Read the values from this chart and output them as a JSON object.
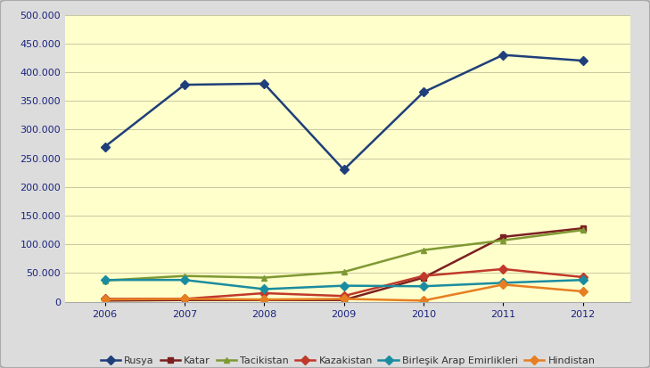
{
  "years": [
    2006,
    2007,
    2008,
    2009,
    2010,
    2011,
    2012
  ],
  "series": {
    "Rusya": {
      "values": [
        270000,
        378000,
        380000,
        230000,
        365000,
        430000,
        420000
      ],
      "color": "#1F3F7A",
      "marker": "D"
    },
    "Katar": {
      "values": [
        2000,
        3000,
        3000,
        3000,
        42000,
        113000,
        128000
      ],
      "color": "#7B2020",
      "marker": "s"
    },
    "Tacikistan": {
      "values": [
        37000,
        45000,
        42000,
        52000,
        90000,
        107000,
        125000
      ],
      "color": "#7F9933",
      "marker": "^"
    },
    "Kazakistan": {
      "values": [
        5000,
        5000,
        15000,
        10000,
        45000,
        57000,
        43000
      ],
      "color": "#C0392B",
      "marker": "D"
    },
    "Birleşik Arap Emirlikleri": {
      "values": [
        38000,
        38000,
        22000,
        28000,
        27000,
        33000,
        38000
      ],
      "color": "#1A8CA0",
      "marker": "D"
    },
    "Hindistan": {
      "values": [
        4000,
        5000,
        4000,
        5000,
        2000,
        30000,
        18000
      ],
      "color": "#E67E22",
      "marker": "D"
    }
  },
  "ylim": [
    0,
    500000
  ],
  "yticks": [
    0,
    50000,
    100000,
    150000,
    200000,
    250000,
    300000,
    350000,
    400000,
    450000,
    500000
  ],
  "background_color": "#FFFFCC",
  "outer_background": "#DCDCDC",
  "grid_color": "#C8C8A0",
  "tick_label_fontsize": 8,
  "legend_fontsize": 8,
  "markersize": 5,
  "linewidth": 1.8
}
